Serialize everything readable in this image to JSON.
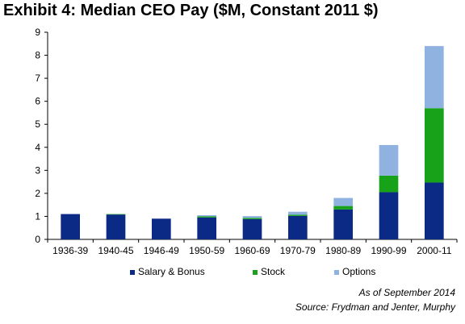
{
  "chart_data": {
    "type": "bar",
    "stacked": true,
    "title": "Exhibit 4: Median CEO Pay ($M, Constant 2011 $)",
    "xlabel": "",
    "ylabel": "",
    "ylim": [
      0,
      9
    ],
    "yticks": [
      0,
      1,
      2,
      3,
      4,
      5,
      6,
      7,
      8,
      9
    ],
    "grid": false,
    "legend_position": "bottom",
    "categories": [
      "1936-39",
      "1940-45",
      "1946-49",
      "1950-59",
      "1960-69",
      "1970-79",
      "1980-89",
      "1990-99",
      "2000-11"
    ],
    "series": [
      {
        "name": "Salary & Bonus",
        "color": "#0b2a86",
        "values": [
          1.1,
          1.08,
          0.9,
          0.95,
          0.88,
          1.02,
          1.3,
          2.05,
          2.47
        ]
      },
      {
        "name": "Stock",
        "color": "#17a21a",
        "values": [
          0,
          0.02,
          0,
          0.05,
          0.05,
          0.05,
          0.15,
          0.72,
          3.23
        ]
      },
      {
        "name": "Options",
        "color": "#8fb2e0",
        "values": [
          0,
          0,
          0,
          0.05,
          0.08,
          0.13,
          0.35,
          1.33,
          2.7
        ]
      }
    ]
  },
  "notes": {
    "date": "As of September 2014",
    "source": "Source: Frydman and Jenter, Murphy"
  }
}
